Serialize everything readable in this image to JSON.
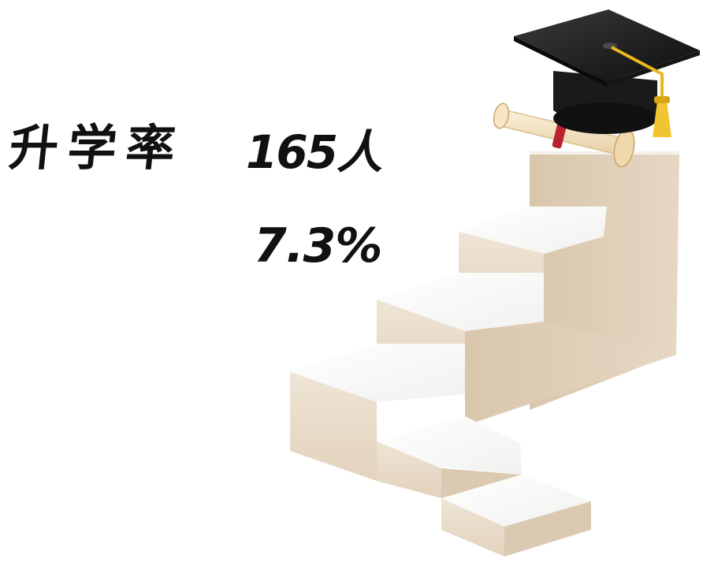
{
  "stat": {
    "label": "升学率",
    "count": "165人",
    "rate": "7.3%"
  },
  "illustration": {
    "objects": [
      "graduation-cap-icon",
      "diploma-scroll-icon",
      "staircase"
    ],
    "colors": {
      "stair_top": "#fbfbfa",
      "stair_front": "#e9dccb",
      "stair_side": "#dcc9b1",
      "cap_board": "#1c1c1c",
      "tassel": "#e8b820",
      "scroll": "#f3e3c4",
      "ribbon": "#b8232e"
    }
  }
}
